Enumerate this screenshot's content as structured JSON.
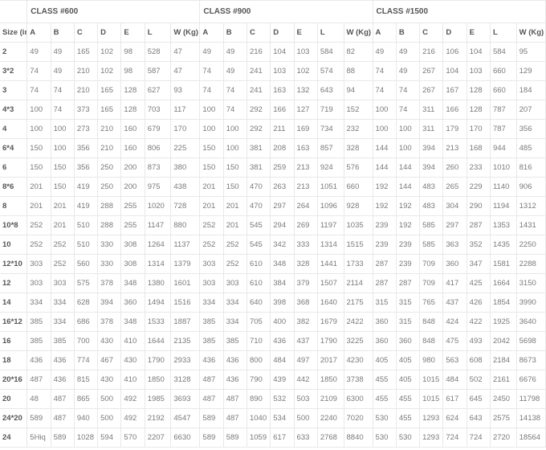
{
  "table": {
    "type": "table",
    "class_groups": [
      "CLASS #600",
      "CLASS #900",
      "CLASS #1500"
    ],
    "size_header": "Size (in)",
    "sub_headers": [
      "A",
      "B",
      "C",
      "D",
      "E",
      "L",
      "W (Kg)"
    ],
    "rows": [
      {
        "size": "2",
        "c600": [
          "49",
          "49",
          "165",
          "102",
          "98",
          "528",
          "47"
        ],
        "c900": [
          "49",
          "49",
          "216",
          "104",
          "103",
          "584",
          "82"
        ],
        "c1500": [
          "49",
          "49",
          "216",
          "106",
          "104",
          "584",
          "95"
        ]
      },
      {
        "size": "3*2",
        "c600": [
          "74",
          "49",
          "210",
          "102",
          "98",
          "587",
          "47"
        ],
        "c900": [
          "74",
          "49",
          "241",
          "103",
          "102",
          "574",
          "88"
        ],
        "c1500": [
          "74",
          "49",
          "267",
          "104",
          "103",
          "660",
          "129"
        ]
      },
      {
        "size": "3",
        "c600": [
          "74",
          "74",
          "210",
          "165",
          "128",
          "627",
          "93"
        ],
        "c900": [
          "74",
          "74",
          "241",
          "163",
          "132",
          "643",
          "94"
        ],
        "c1500": [
          "74",
          "74",
          "267",
          "167",
          "128",
          "660",
          "184"
        ]
      },
      {
        "size": "4*3",
        "c600": [
          "100",
          "74",
          "373",
          "165",
          "128",
          "703",
          "117"
        ],
        "c900": [
          "100",
          "74",
          "292",
          "166",
          "127",
          "719",
          "152"
        ],
        "c1500": [
          "100",
          "74",
          "311",
          "166",
          "128",
          "787",
          "207"
        ]
      },
      {
        "size": "4",
        "c600": [
          "100",
          "100",
          "273",
          "210",
          "160",
          "679",
          "170"
        ],
        "c900": [
          "100",
          "100",
          "292",
          "211",
          "169",
          "734",
          "232"
        ],
        "c1500": [
          "100",
          "100",
          "311",
          "179",
          "170",
          "787",
          "356"
        ]
      },
      {
        "size": "6*4",
        "c600": [
          "150",
          "100",
          "356",
          "210",
          "160",
          "806",
          "225"
        ],
        "c900": [
          "150",
          "100",
          "381",
          "208",
          "163",
          "857",
          "328"
        ],
        "c1500": [
          "144",
          "100",
          "394",
          "213",
          "168",
          "944",
          "485"
        ]
      },
      {
        "size": "6",
        "c600": [
          "150",
          "150",
          "356",
          "250",
          "200",
          "873",
          "380"
        ],
        "c900": [
          "150",
          "150",
          "381",
          "259",
          "213",
          "924",
          "576"
        ],
        "c1500": [
          "144",
          "144",
          "394",
          "260",
          "233",
          "1010",
          "816"
        ]
      },
      {
        "size": "8*6",
        "c600": [
          "201",
          "150",
          "419",
          "250",
          "200",
          "975",
          "438"
        ],
        "c900": [
          "201",
          "150",
          "470",
          "263",
          "213",
          "1051",
          "660"
        ],
        "c1500": [
          "192",
          "144",
          "483",
          "265",
          "229",
          "1140",
          "906"
        ]
      },
      {
        "size": "8",
        "c600": [
          "201",
          "201",
          "419",
          "288",
          "255",
          "1020",
          "728"
        ],
        "c900": [
          "201",
          "201",
          "470",
          "297",
          "264",
          "1096",
          "928"
        ],
        "c1500": [
          "192",
          "192",
          "483",
          "304",
          "290",
          "1194",
          "1312"
        ]
      },
      {
        "size": "10*8",
        "c600": [
          "252",
          "201",
          "510",
          "288",
          "255",
          "1147",
          "880"
        ],
        "c900": [
          "252",
          "201",
          "545",
          "294",
          "269",
          "1197",
          "1035"
        ],
        "c1500": [
          "239",
          "192",
          "585",
          "297",
          "287",
          "1353",
          "1431"
        ]
      },
      {
        "size": "10",
        "c600": [
          "252",
          "252",
          "510",
          "330",
          "308",
          "1264",
          "1137"
        ],
        "c900": [
          "252",
          "252",
          "545",
          "342",
          "333",
          "1314",
          "1515"
        ],
        "c1500": [
          "239",
          "239",
          "585",
          "363",
          "352",
          "1435",
          "2250"
        ]
      },
      {
        "size": "12*10",
        "c600": [
          "303",
          "252",
          "560",
          "330",
          "308",
          "1314",
          "1379"
        ],
        "c900": [
          "303",
          "252",
          "610",
          "348",
          "328",
          "1441",
          "1733"
        ],
        "c1500": [
          "287",
          "239",
          "709",
          "360",
          "347",
          "1581",
          "2288"
        ]
      },
      {
        "size": "12",
        "c600": [
          "303",
          "303",
          "575",
          "378",
          "348",
          "1380",
          "1601"
        ],
        "c900": [
          "303",
          "303",
          "610",
          "384",
          "379",
          "1507",
          "2114"
        ],
        "c1500": [
          "287",
          "287",
          "709",
          "417",
          "425",
          "1664",
          "3150"
        ]
      },
      {
        "size": "14",
        "c600": [
          "334",
          "334",
          "628",
          "394",
          "360",
          "1494",
          "1516"
        ],
        "c900": [
          "334",
          "334",
          "640",
          "398",
          "368",
          "1640",
          "2175"
        ],
        "c1500": [
          "315",
          "315",
          "765",
          "437",
          "426",
          "1854",
          "3990"
        ]
      },
      {
        "size": "16*12",
        "c600": [
          "385",
          "334",
          "686",
          "378",
          "348",
          "1533",
          "1887"
        ],
        "c900": [
          "385",
          "334",
          "705",
          "400",
          "382",
          "1679",
          "2422"
        ],
        "c1500": [
          "360",
          "315",
          "848",
          "424",
          "422",
          "1925",
          "3640"
        ]
      },
      {
        "size": "16",
        "c600": [
          "385",
          "385",
          "700",
          "430",
          "410",
          "1644",
          "2135"
        ],
        "c900": [
          "385",
          "385",
          "710",
          "436",
          "437",
          "1790",
          "3225"
        ],
        "c1500": [
          "360",
          "360",
          "848",
          "475",
          "493",
          "2042",
          "5698"
        ]
      },
      {
        "size": "18",
        "c600": [
          "436",
          "436",
          "774",
          "467",
          "430",
          "1790",
          "2933"
        ],
        "c900": [
          "436",
          "436",
          "800",
          "484",
          "497",
          "2017",
          "4230"
        ],
        "c1500": [
          "405",
          "405",
          "980",
          "563",
          "608",
          "2184",
          "8673"
        ]
      },
      {
        "size": "20*16",
        "c600": [
          "487",
          "436",
          "815",
          "430",
          "410",
          "1850",
          "3128"
        ],
        "c900": [
          "487",
          "436",
          "790",
          "439",
          "442",
          "1850",
          "3738"
        ],
        "c1500": [
          "455",
          "405",
          "1015",
          "484",
          "502",
          "2161",
          "6676"
        ]
      },
      {
        "size": "20",
        "c600": [
          "48",
          "487",
          "865",
          "500",
          "492",
          "1985",
          "3693"
        ],
        "c900": [
          "487",
          "487",
          "890",
          "532",
          "503",
          "2109",
          "6300"
        ],
        "c1500": [
          "455",
          "455",
          "1015",
          "617",
          "645",
          "2450",
          "11798"
        ]
      },
      {
        "size": "24*20",
        "c600": [
          "589",
          "487",
          "940",
          "500",
          "492",
          "2192",
          "4547"
        ],
        "c900": [
          "589",
          "487",
          "1040",
          "534",
          "500",
          "2240",
          "7020"
        ],
        "c1500": [
          "530",
          "455",
          "1293",
          "624",
          "643",
          "2575",
          "14138"
        ]
      },
      {
        "size": "24",
        "c600": [
          "5Hiq",
          "589",
          "1028",
          "594",
          "570",
          "2207",
          "6630"
        ],
        "c900": [
          "589",
          "589",
          "1059",
          "617",
          "633",
          "2768",
          "8840"
        ],
        "c1500": [
          "530",
          "530",
          "1293",
          "724",
          "724",
          "2720",
          "18564"
        ]
      }
    ],
    "border_color": "#e8e8e8",
    "text_color": "#7a7a7a",
    "header_color": "#555",
    "background_color": "#ffffff",
    "font_size_pt": 9.5
  }
}
